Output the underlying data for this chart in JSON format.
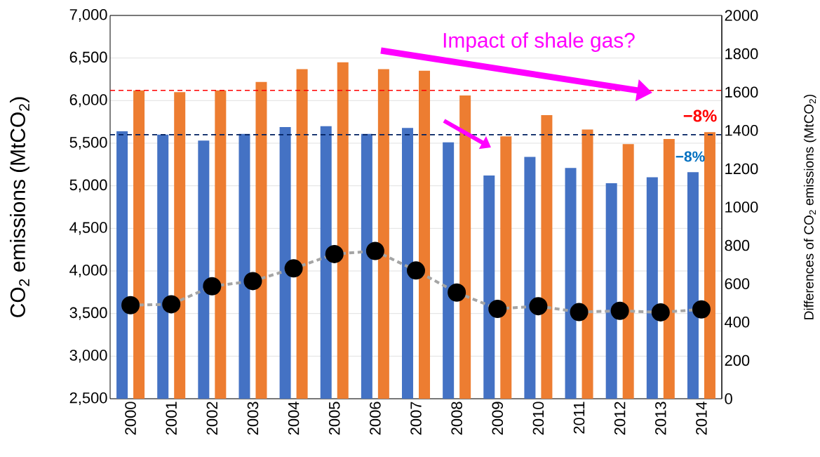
{
  "chart_data": {
    "type": "bar",
    "ylabel": "CO$_{2}$ emissions (MtCO$_{2}$)",
    "y2label": "Differences of CO$_{2}$ emissions (MtCO$_{2}$)",
    "categories": [
      "2000",
      "2001",
      "2002",
      "2003",
      "2004",
      "2005",
      "2006",
      "2007",
      "2008",
      "2009",
      "2010",
      "2011",
      "2012",
      "2013",
      "2014"
    ],
    "series": [
      {
        "color": "#4472c4",
        "values": [
          5640,
          5600,
          5530,
          5610,
          5690,
          5700,
          5610,
          5680,
          5510,
          5120,
          5340,
          5210,
          5030,
          5100,
          5160
        ]
      },
      {
        "color": "#ed7d31",
        "values": [
          6120,
          6100,
          6120,
          6220,
          6370,
          6450,
          6370,
          6350,
          6060,
          5580,
          5830,
          5660,
          5490,
          5550,
          5630
        ]
      },
      {
        "type": "line",
        "axis": "y2",
        "color": "#a5a5a5",
        "marker": "circle",
        "line_style": "dashed",
        "values": [
          488,
          493,
          587,
          614,
          680,
          755,
          771,
          669,
          554,
          469,
          483,
          452,
          459,
          451,
          466
        ]
      }
    ],
    "ylim": [
      2500,
      7000
    ],
    "yticks": [
      {
        "value": 2500,
        "label": "2,500"
      },
      {
        "value": 3000,
        "label": "3,000"
      },
      {
        "value": 3500,
        "label": "3,500"
      },
      {
        "value": 4000,
        "label": "4,000"
      },
      {
        "value": 4500,
        "label": "4,500"
      },
      {
        "value": 5000,
        "label": "5,000"
      },
      {
        "value": 5500,
        "label": "5,500"
      },
      {
        "value": 6000,
        "label": "6,000"
      },
      {
        "value": 6500,
        "label": "6,500"
      },
      {
        "value": 7000,
        "label": "7,000"
      }
    ],
    "y2lim": [
      0,
      2000
    ],
    "y2ticks": [
      0,
      200,
      400,
      600,
      800,
      1000,
      1200,
      1400,
      1600,
      1800,
      2000
    ],
    "grid": "y",
    "ref_lines": [
      {
        "axis": "y",
        "value": 6120,
        "color": "#ff0000",
        "line_style": "dashed"
      },
      {
        "axis": "y",
        "value": 5600,
        "color": "#002060",
        "line_style": "dashed"
      }
    ],
    "annotations": [
      "Impact of shale gas?",
      "−8%",
      "−8%"
    ]
  }
}
